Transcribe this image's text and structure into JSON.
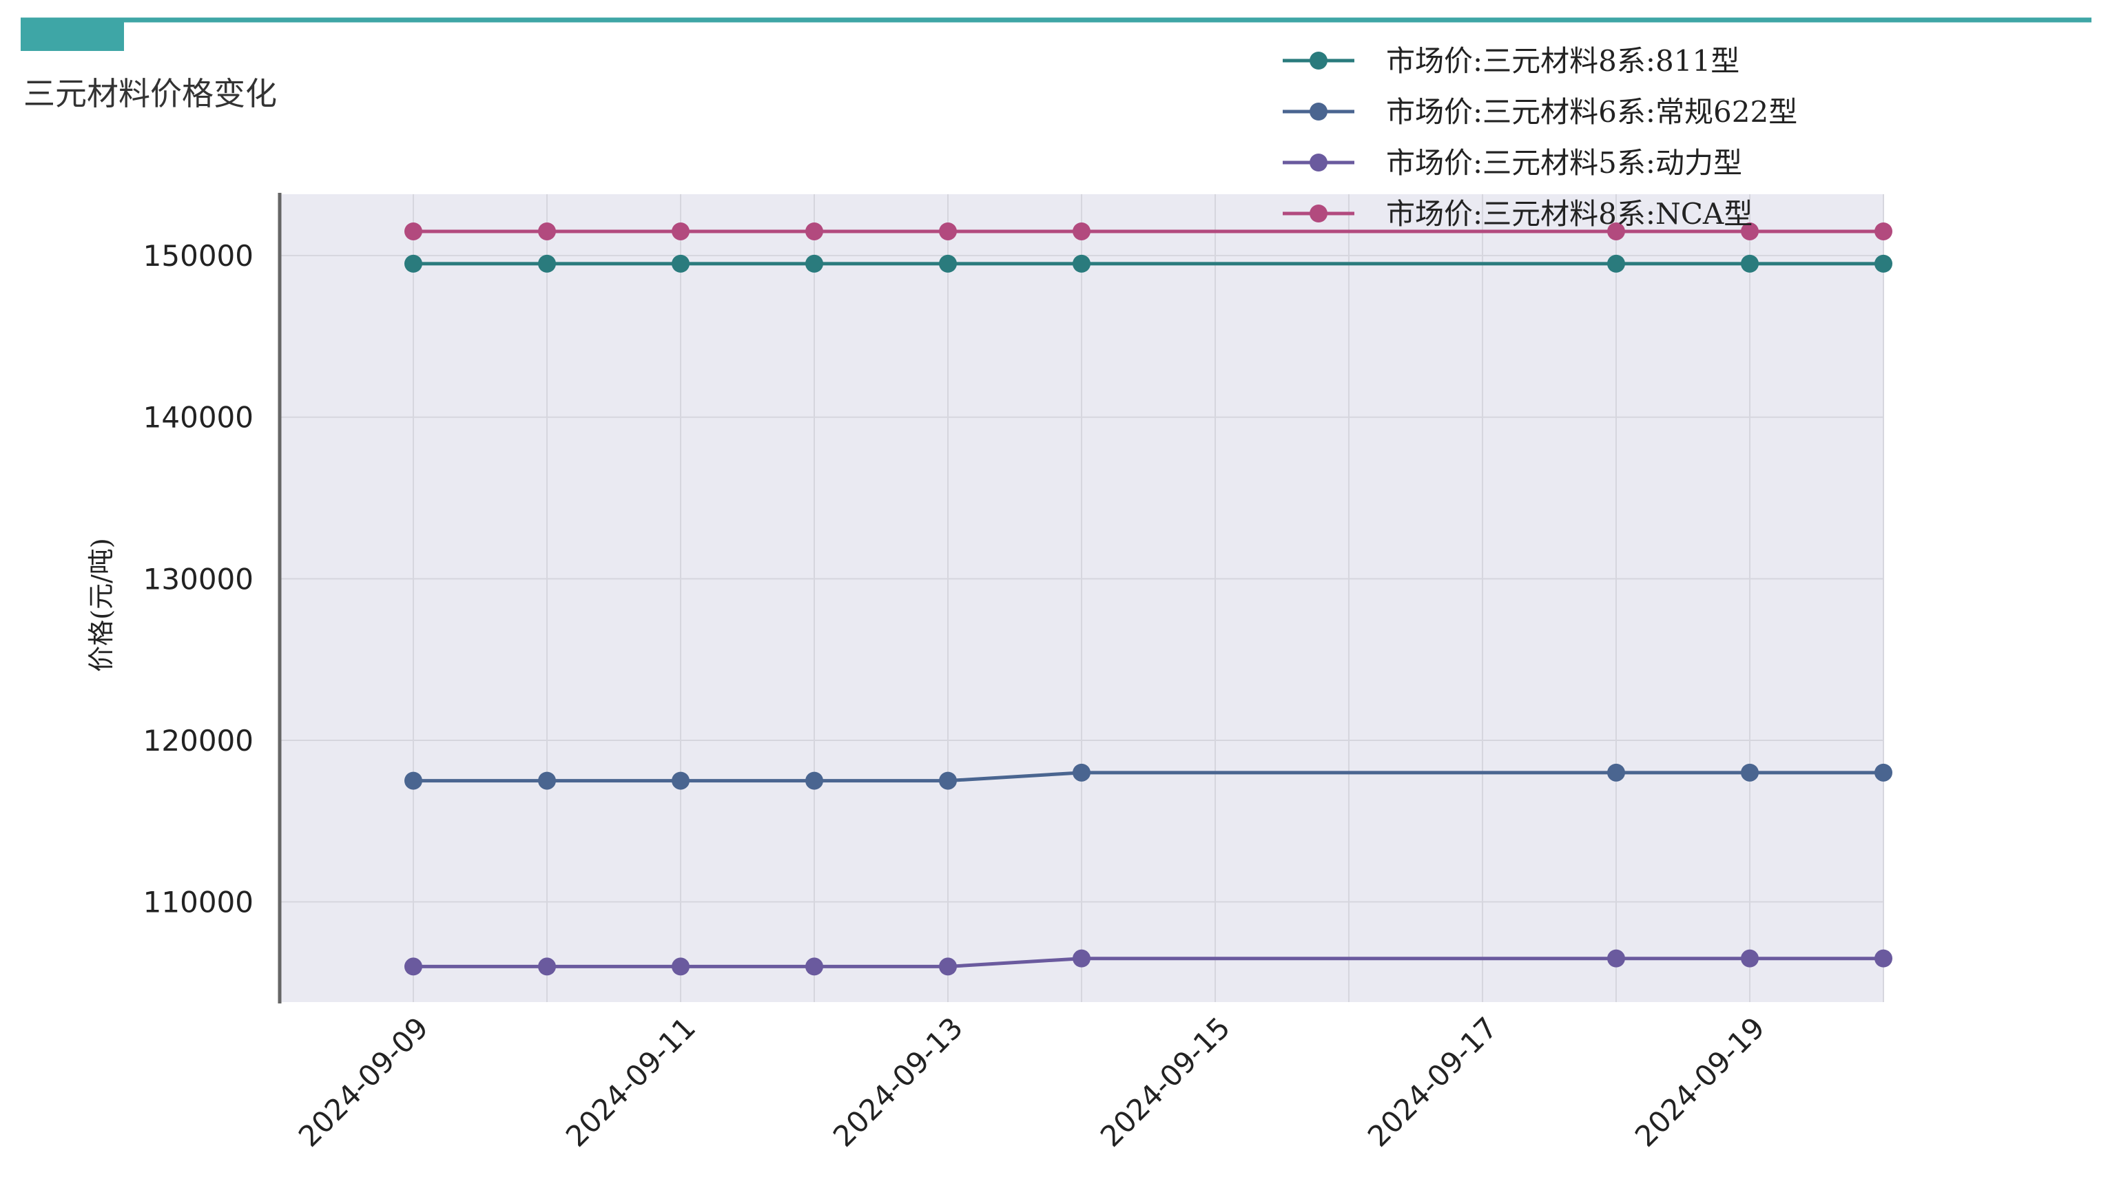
{
  "header": {
    "title": "三元材料价格变化",
    "accent_color": "#3ea6a6"
  },
  "chart_data": {
    "type": "line",
    "title": "三元材料价格变化",
    "ylabel": "价格(元/吨)",
    "xlabel": "",
    "ylim": [
      103800,
      153800
    ],
    "yticks": [
      110000,
      120000,
      130000,
      140000,
      150000
    ],
    "xlim": [
      "2024-09-08",
      "2024-09-20"
    ],
    "xtick_labels": [
      "2024-09-09",
      "2024-09-11",
      "2024-09-13",
      "2024-09-15",
      "2024-09-17",
      "2024-09-19"
    ],
    "x": [
      "2024-09-09",
      "2024-09-10",
      "2024-09-11",
      "2024-09-12",
      "2024-09-13",
      "2024-09-14",
      "2024-09-18",
      "2024-09-19",
      "2024-09-20"
    ],
    "grid": true,
    "legend_position": "top-right",
    "series": [
      {
        "name": "市场价:三元材料8系:811型",
        "color": "#2a7b7d",
        "values": [
          149500,
          149500,
          149500,
          149500,
          149500,
          149500,
          149500,
          149500,
          149500
        ]
      },
      {
        "name": "市场价:三元材料6系:常规622型",
        "color": "#4a6590",
        "values": [
          117500,
          117500,
          117500,
          117500,
          117500,
          118000,
          118000,
          118000,
          118000
        ]
      },
      {
        "name": "市场价:三元材料5系:动力型",
        "color": "#6a5a9e",
        "values": [
          106000,
          106000,
          106000,
          106000,
          106000,
          106500,
          106500,
          106500,
          106500
        ]
      },
      {
        "name": "市场价:三元材料8系:NCA型",
        "color": "#b24a7e",
        "values": [
          151500,
          151500,
          151500,
          151500,
          151500,
          151500,
          151500,
          151500,
          151500
        ]
      }
    ]
  }
}
